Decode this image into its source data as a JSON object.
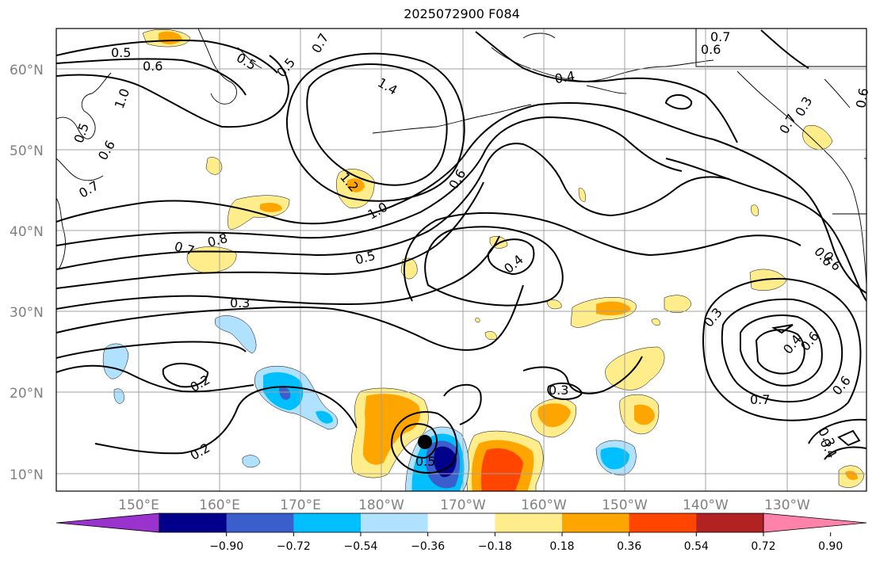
{
  "title": "2025072900 F084",
  "lat_labels": [
    "60°N",
    "50°N",
    "40°N",
    "30°N",
    "20°N",
    "10°N"
  ],
  "lon_labels": [
    "150°E",
    "160°E",
    "170°E",
    "180°W",
    "170°W",
    "160°W",
    "150°W",
    "140°W",
    "130°W"
  ],
  "colorbar": {
    "tick_labels": [
      "−0.90",
      "−0.72",
      "−0.54",
      "−0.36",
      "−0.18",
      "0.18",
      "0.36",
      "0.54",
      "0.72",
      "0.90"
    ],
    "colors": [
      "#9a32cd",
      "#00008b",
      "#3a5fcd",
      "#00bfff",
      "#b0e2ff",
      "#ffffff",
      "#ffec8b",
      "#ffa500",
      "#ff4500",
      "#b22222",
      "#ff82ab"
    ],
    "extend": "both"
  },
  "contour_labels": [
    "0.5",
    "0.6",
    "1.0",
    "0.5",
    "0.6",
    "0.7",
    "0.5",
    "0.5",
    "0.7",
    "1.4",
    "1.2",
    "1.0",
    "0.8",
    "0.7",
    "0.5",
    "0.3",
    "0.6",
    "0.4",
    "0.4",
    "0.7",
    "0.6",
    "0.6",
    "0.3",
    "0.7",
    "0.6",
    "0.3",
    "0.2",
    "0.2",
    "0.5",
    "0.3",
    "0.7",
    "0.4",
    "0.6",
    "0.6",
    "0.3",
    "0.4",
    "0.6"
  ],
  "marker": "tropical-cyclone-center",
  "map_features": [
    "coastlines",
    "gridlines",
    "filled-anomaly-contours",
    "line-contours"
  ]
}
